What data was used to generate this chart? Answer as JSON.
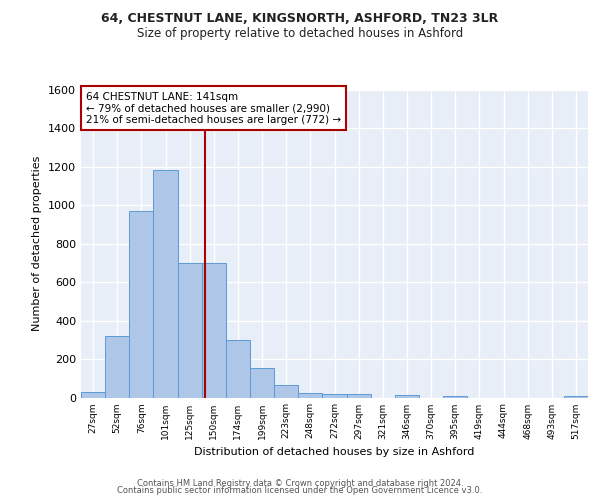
{
  "title_line1": "64, CHESTNUT LANE, KINGSNORTH, ASHFORD, TN23 3LR",
  "title_line2": "Size of property relative to detached houses in Ashford",
  "xlabel": "Distribution of detached houses by size in Ashford",
  "ylabel": "Number of detached properties",
  "bar_labels": [
    "27sqm",
    "52sqm",
    "76sqm",
    "101sqm",
    "125sqm",
    "150sqm",
    "174sqm",
    "199sqm",
    "223sqm",
    "248sqm",
    "272sqm",
    "297sqm",
    "321sqm",
    "346sqm",
    "370sqm",
    "395sqm",
    "419sqm",
    "444sqm",
    "468sqm",
    "493sqm",
    "517sqm"
  ],
  "bar_values": [
    30,
    320,
    970,
    1185,
    700,
    700,
    300,
    155,
    65,
    25,
    18,
    18,
    0,
    15,
    0,
    10,
    0,
    0,
    0,
    0,
    10
  ],
  "bar_color": "#aec6e8",
  "bar_edge_color": "#5b9bd5",
  "vline_color": "#aa0000",
  "annotation_text": "64 CHESTNUT LANE: 141sqm\n← 79% of detached houses are smaller (2,990)\n21% of semi-detached houses are larger (772) →",
  "annotation_box_color": "#ffffff",
  "annotation_box_edge": "#aa0000",
  "ylim": [
    0,
    1600
  ],
  "yticks": [
    0,
    200,
    400,
    600,
    800,
    1000,
    1200,
    1400,
    1600
  ],
  "background_color": "#e8eef7",
  "grid_color": "#ffffff",
  "footer_line1": "Contains HM Land Registry data © Crown copyright and database right 2024.",
  "footer_line2": "Contains public sector information licensed under the Open Government Licence v3.0."
}
